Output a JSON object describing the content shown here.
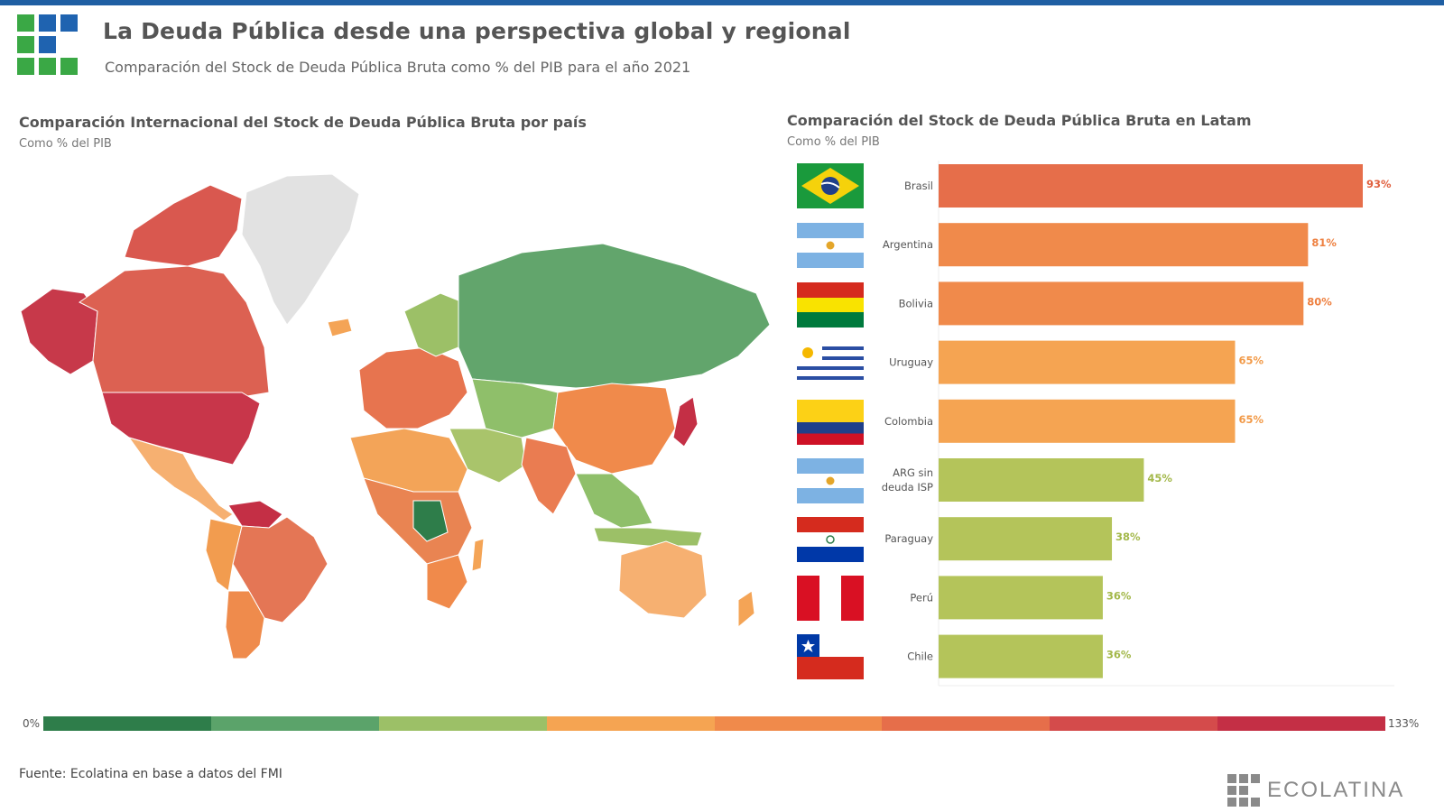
{
  "header": {
    "title": "La Deuda Pública desde una perspectiva global y regional",
    "subtitle": "Comparación del Stock de Deuda Pública Bruta como % del PIB para el año 2021"
  },
  "map_panel": {
    "title": "Comparación Internacional del Stock de Deuda Pública Bruta por país",
    "subtitle": "Como % del PIB"
  },
  "bars_panel": {
    "title": "Comparación del Stock de Deuda Pública Bruta en Latam",
    "subtitle": "Como % del PIB"
  },
  "color_scale": {
    "min_label": "0%",
    "max_label": "133%",
    "colors": [
      "#2e7d4a",
      "#5ba36a",
      "#9cc067",
      "#f5a452",
      "#f08a4b",
      "#e66e4a",
      "#d44b4b",
      "#c42f45"
    ]
  },
  "footer": {
    "source": "Fuente: Ecolatina en base a datos del FMI",
    "brand": "ECOLATINA"
  },
  "colors": {
    "accent_bar": "#1f5fa3",
    "logo_blue": "#1f63b0",
    "logo_green": "#3aa845"
  },
  "chart_data": [
    {
      "type": "bar",
      "orientation": "horizontal",
      "title": "Comparación del Stock de Deuda Pública Bruta en Latam",
      "subtitle": "Como % del PIB",
      "categories": [
        "Brasil",
        "Argentina",
        "Bolivia",
        "Uruguay",
        "Colombia",
        "ARG sin deuda ISP",
        "Paraguay",
        "Perú",
        "Chile"
      ],
      "values": [
        93,
        81,
        80,
        65,
        65,
        45,
        38,
        36,
        36
      ],
      "value_labels": [
        "93%",
        "81%",
        "80%",
        "65%",
        "65%",
        "45%",
        "38%",
        "36%",
        "36%"
      ],
      "colors": [
        "#e66e4a",
        "#f08a4b",
        "#f08a4b",
        "#f5a452",
        "#f5a452",
        "#b4c45a",
        "#b4c45a",
        "#b4c45a",
        "#b4c45a"
      ],
      "label_colors": [
        "#e0603e",
        "#ee8040",
        "#ee8040",
        "#f29a48",
        "#f29a48",
        "#a3b84a",
        "#a3b84a",
        "#a3b84a",
        "#a3b84a"
      ],
      "flags": [
        "brazil",
        "argentina",
        "bolivia",
        "uruguay",
        "colombia",
        "argentina",
        "paraguay",
        "peru",
        "chile"
      ],
      "xlim": [
        0,
        93
      ]
    },
    {
      "type": "heatmap",
      "subtype": "choropleth-world-map",
      "title": "Comparación Internacional del Stock de Deuda Pública Bruta por país",
      "subtitle": "Como % del PIB",
      "scale": [
        0,
        133
      ]
    }
  ]
}
